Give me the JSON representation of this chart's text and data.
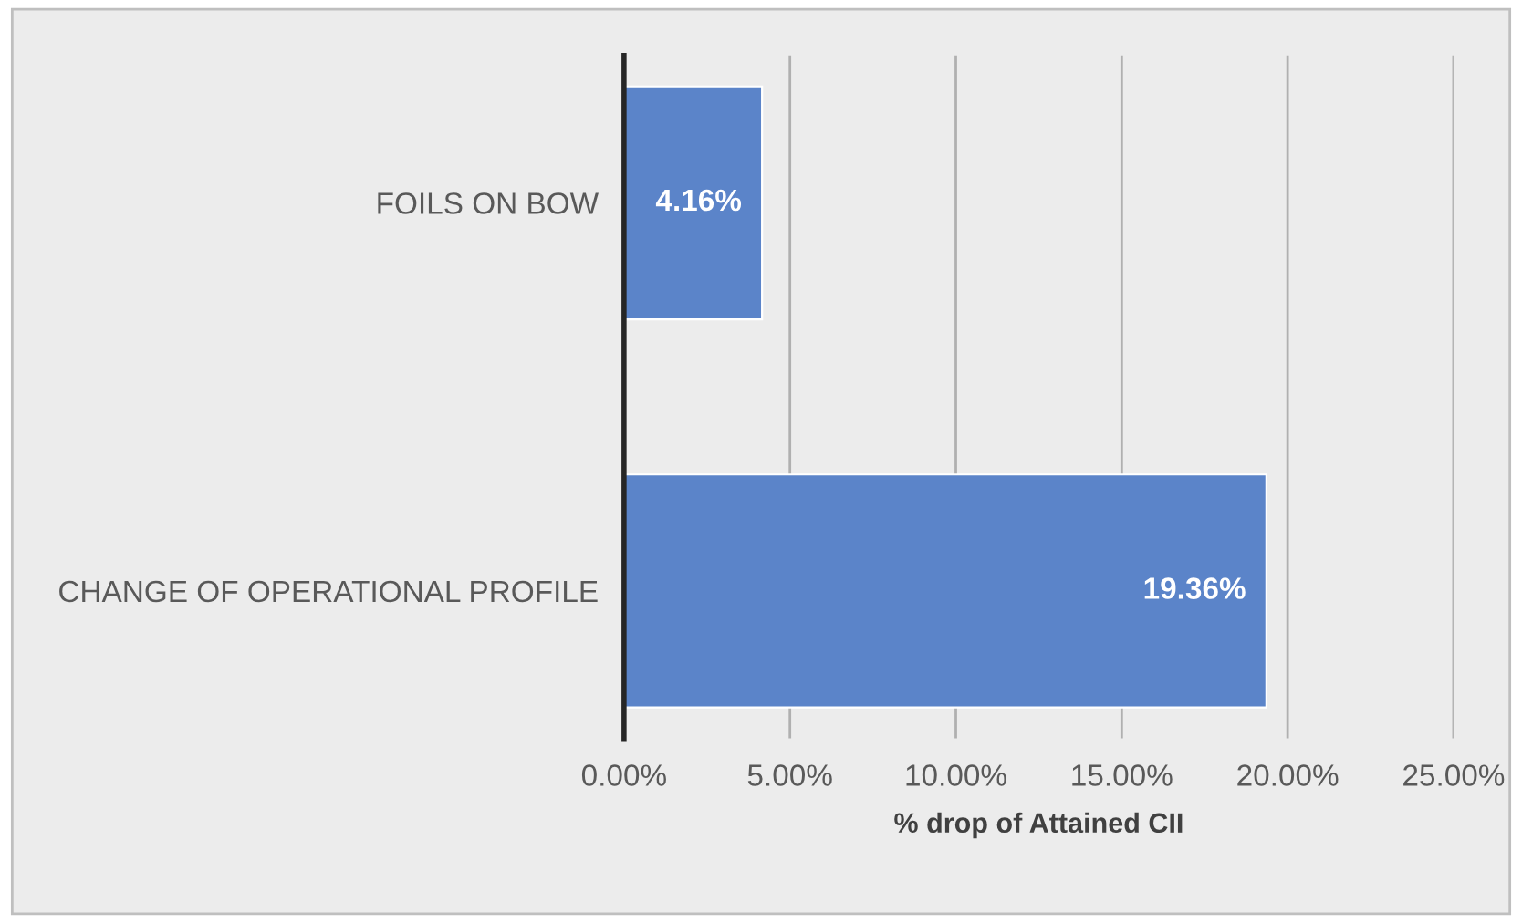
{
  "chart_data": {
    "type": "bar",
    "orientation": "horizontal",
    "xlabel": "% drop of Attained CII",
    "categories": [
      "FOILS ON BOW",
      "CHANGE OF OPERATIONAL PROFILE"
    ],
    "values": [
      4.16,
      19.36
    ],
    "color": "#5b84c9",
    "value_labels": [
      "4.16%",
      "19.36%"
    ],
    "xlim": [
      0,
      25
    ],
    "xticks": [
      {
        "value": 0,
        "label": "0.00%"
      },
      {
        "value": 5,
        "label": "5.00%"
      },
      {
        "value": 10,
        "label": "10.00%"
      },
      {
        "value": 15,
        "label": "15.00%"
      },
      {
        "value": 20,
        "label": "20.00%"
      },
      {
        "value": 25,
        "label": "25.00%"
      }
    ],
    "grid": "x",
    "legend": false
  }
}
